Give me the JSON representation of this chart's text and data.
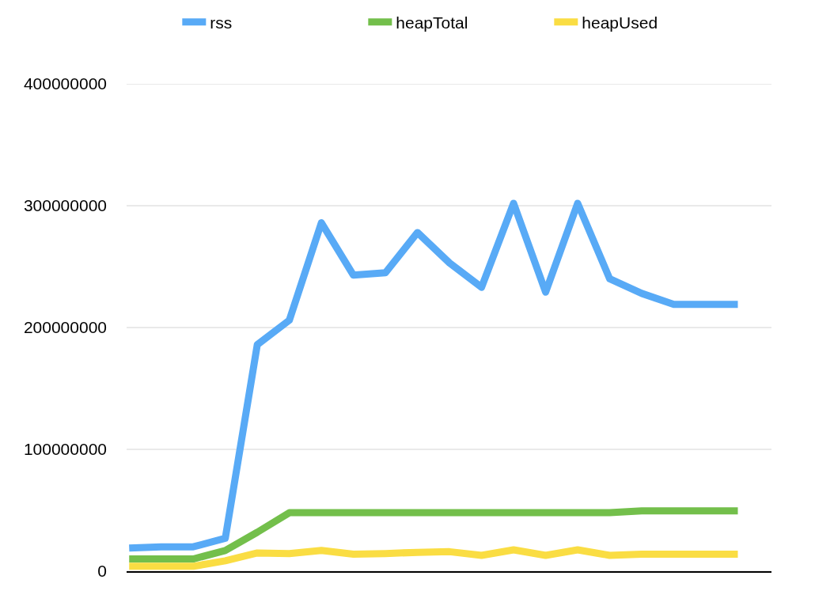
{
  "chart_data": {
    "type": "line",
    "categories": [
      null,
      null,
      null,
      null,
      null,
      null,
      null,
      null,
      null,
      null,
      null,
      null,
      null,
      null,
      null,
      null,
      null,
      null,
      null,
      null
    ],
    "series": [
      {
        "name": "rss",
        "color": "#58aaf6",
        "values": [
          19000000,
          20000000,
          20000000,
          27000000,
          186000000,
          206000000,
          286000000,
          243000000,
          245000000,
          278000000,
          253000000,
          233000000,
          302000000,
          229000000,
          302000000,
          240000000,
          228000000,
          219000000,
          219000000,
          219000000
        ]
      },
      {
        "name": "heapTotal",
        "color": "#73bf4b",
        "values": [
          10000000,
          10000000,
          10000000,
          17000000,
          32000000,
          48000000,
          48000000,
          48000000,
          48000000,
          48000000,
          48000000,
          48000000,
          48000000,
          48000000,
          48000000,
          48000000,
          49500000,
          49500000,
          49500000,
          49500000
        ]
      },
      {
        "name": "heapUsed",
        "color": "#fadd43",
        "values": [
          4000000,
          4000000,
          4000000,
          8500000,
          15000000,
          14500000,
          17000000,
          14000000,
          14500000,
          15500000,
          16000000,
          13000000,
          17500000,
          13000000,
          17500000,
          13000000,
          14000000,
          14000000,
          14000000,
          14000000
        ]
      }
    ],
    "ylim": [
      0,
      400000000
    ],
    "yticks": [
      0,
      100000000,
      200000000,
      300000000,
      400000000
    ],
    "grid": "y",
    "legend": "top",
    "tick_labels": "y",
    "marker": "none",
    "line_style": "solid"
  }
}
